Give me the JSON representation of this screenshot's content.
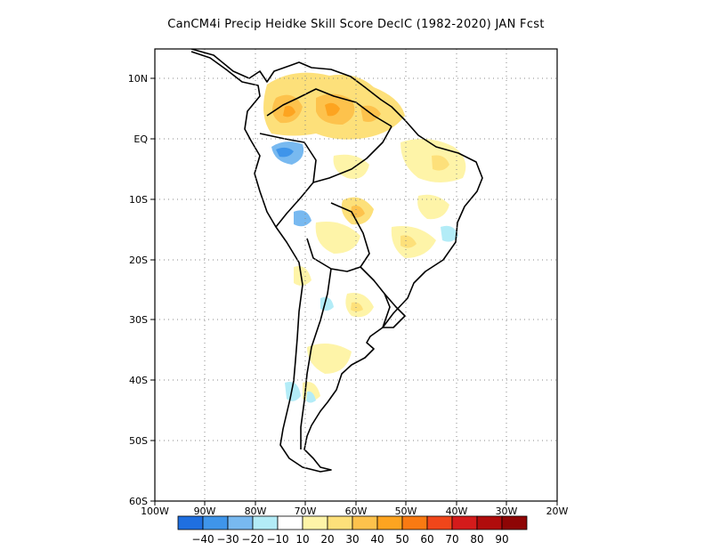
{
  "title": "CanCM4i Precip Heidke Skill Score DeclC (1982-2020) JAN Fcst",
  "map": {
    "lat_ticks": [
      "10N",
      "EQ",
      "10S",
      "20S",
      "30S",
      "40S",
      "50S",
      "60S"
    ],
    "lon_ticks": [
      "100W",
      "90W",
      "80W",
      "70W",
      "60W",
      "50W",
      "40W",
      "30W",
      "20W"
    ],
    "extent": {
      "lon_min": -100,
      "lon_max": -20,
      "lat_min": -60,
      "lat_max": 15
    },
    "gridlines": "dotted",
    "region": "South America"
  },
  "colorbar": {
    "labels": [
      "-40",
      "-30",
      "-20",
      "-10",
      "10",
      "20",
      "30",
      "40",
      "50",
      "60",
      "70",
      "80",
      "90"
    ],
    "colors": [
      "#1f6fe0",
      "#3f95ea",
      "#78b9f0",
      "#b3ecf7",
      "#ffffff",
      "#fef4a8",
      "#fde07a",
      "#fdc24c",
      "#fda420",
      "#f97a12",
      "#f0461a",
      "#d41b1b",
      "#b00c0c",
      "#8e0505"
    ]
  }
}
